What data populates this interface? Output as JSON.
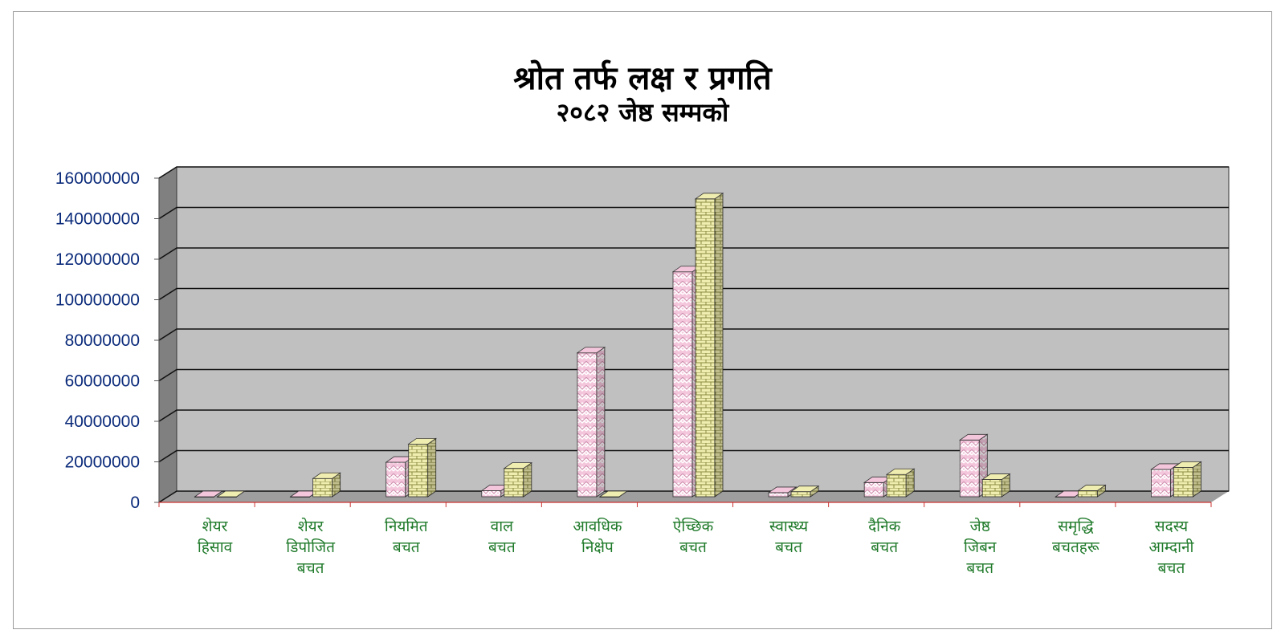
{
  "chart_data": {
    "type": "bar",
    "title": "श्रोत तर्फ लक्ष र प्रगति",
    "subtitle": "२०८२ जेष्ठ सम्मको",
    "categories": [
      [
        "शेयर",
        "हिसाव"
      ],
      [
        "शेयर",
        "डिपोजित",
        "बचत"
      ],
      [
        "नियमित",
        "बचत"
      ],
      [
        "वाल",
        "बचत"
      ],
      [
        "आवधिक",
        "निक्षेप"
      ],
      [
        "ऐच्छिक",
        "बचत"
      ],
      [
        "स्वास्थ्य",
        "बचत"
      ],
      [
        "दैनिक",
        "बचत"
      ],
      [
        "जेष्ठ",
        "जिबन",
        "बचत"
      ],
      [
        "समृद्धि",
        "बचतहरू"
      ],
      [
        "सदस्य",
        "आम्दानी",
        "बचत"
      ]
    ],
    "series": [
      {
        "values": [
          0,
          0,
          17000000,
          3000000,
          71000000,
          111000000,
          2000000,
          7000000,
          28000000,
          0,
          13500000
        ],
        "color": "#f4c6dc",
        "pattern": "zigzag"
      },
      {
        "values": [
          0,
          9000000,
          26000000,
          14000000,
          0,
          147000000,
          2500000,
          11000000,
          8500000,
          3000000,
          14500000
        ],
        "color": "#f0edb0",
        "pattern": "brick"
      }
    ],
    "ylim": [
      0,
      160000000
    ],
    "yticks": [
      0,
      20000000,
      40000000,
      60000000,
      80000000,
      100000000,
      120000000,
      140000000,
      160000000
    ],
    "grid": true,
    "plot_background": "#c0c0c0",
    "axis_text_color": "#0a2a7a",
    "category_text_color": "#1f7a2a"
  }
}
